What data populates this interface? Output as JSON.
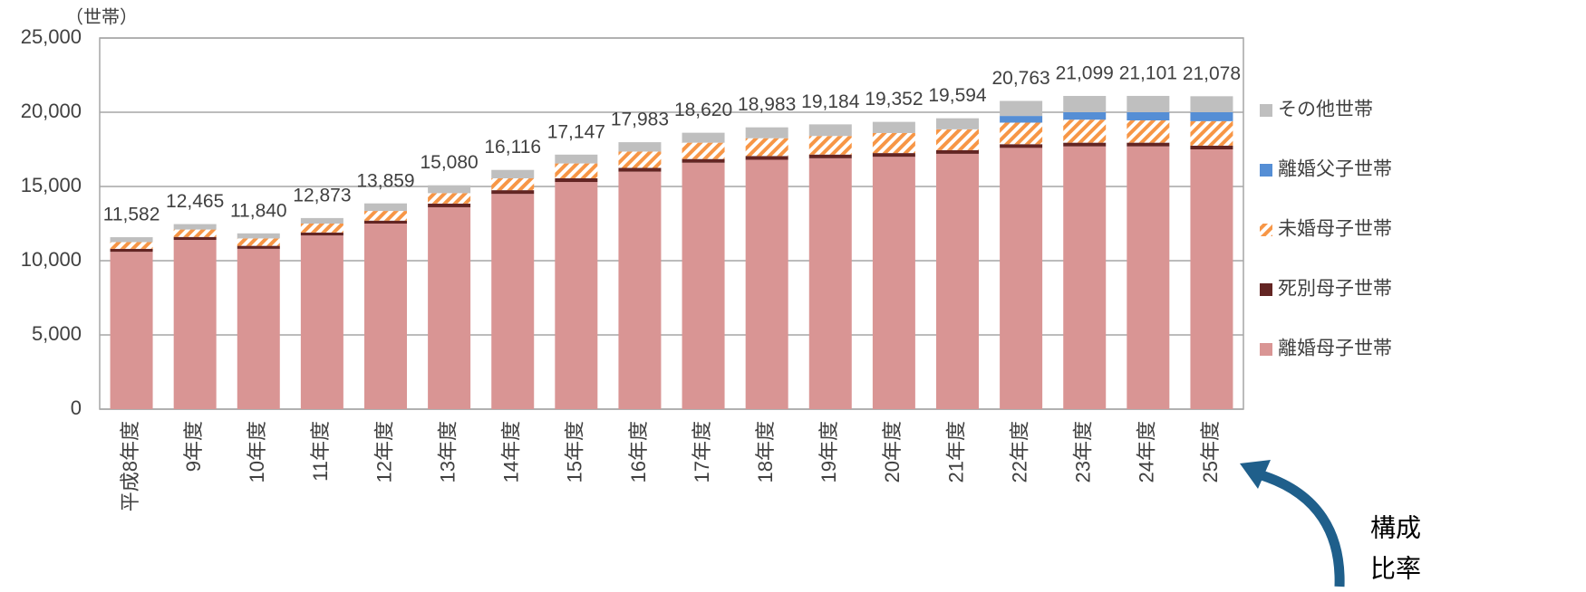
{
  "chart_data": {
    "type": "stacked_bar",
    "unit_label": "（世帯）",
    "categories": [
      "平成8年度",
      "9年度",
      "10年度",
      "11年度",
      "12年度",
      "13年度",
      "14年度",
      "15年度",
      "16年度",
      "17年度",
      "18年度",
      "19年度",
      "20年度",
      "21年度",
      "22年度",
      "23年度",
      "24年度",
      "25年度"
    ],
    "series": [
      {
        "name": "離婚母子世帯",
        "color": "#d99594",
        "values": [
          10600,
          11400,
          10800,
          11700,
          12500,
          13600,
          14500,
          15300,
          16000,
          16600,
          16800,
          16900,
          17000,
          17200,
          17600,
          17700,
          17700,
          17500
        ]
      },
      {
        "name": "死別母子世帯",
        "color": "#632523",
        "values": [
          200,
          200,
          200,
          200,
          200,
          250,
          250,
          250,
          250,
          250,
          250,
          250,
          250,
          250,
          250,
          250,
          250,
          250
        ]
      },
      {
        "name": "未婚母子世帯",
        "color": "#f79646",
        "hatch": true,
        "values": [
          450,
          500,
          500,
          600,
          650,
          700,
          800,
          1000,
          1100,
          1100,
          1200,
          1250,
          1350,
          1400,
          1450,
          1550,
          1500,
          1650
        ]
      },
      {
        "name": "離婚父子世帯",
        "color": "#558ed5",
        "values": [
          null,
          null,
          null,
          null,
          null,
          null,
          null,
          null,
          null,
          null,
          null,
          null,
          null,
          null,
          450,
          500,
          550,
          600
        ]
      },
      {
        "name": "その他世帯",
        "color": "#bfbfbf",
        "values": [
          332,
          365,
          340,
          373,
          509,
          530,
          566,
          597,
          633,
          670,
          733,
          784,
          752,
          744,
          1013,
          1099,
          1101,
          1078
        ]
      }
    ],
    "totals": {
      "values": [
        11582,
        12465,
        11840,
        12873,
        13859,
        15080,
        16116,
        17147,
        17983,
        18620,
        18983,
        19184,
        19352,
        19594,
        20763,
        21099,
        21101,
        21078
      ],
      "value_labels": [
        "11,582",
        "12,465",
        "11,840",
        "12,873",
        "13,859",
        "15,080",
        "16,116",
        "17,147",
        "17,983",
        "18,620",
        "18,983",
        "19,184",
        "19,352",
        "19,594",
        "20,763",
        "21,099",
        "21,101",
        "21,078"
      ]
    },
    "ylim": [
      0,
      25000
    ],
    "yticks": [
      0,
      {
        "value": 5000,
        "label": "5,000"
      },
      {
        "value": 10000,
        "label": "10,000"
      },
      {
        "value": 15000,
        "label": "15,000"
      },
      {
        "value": 20000,
        "label": "20,000"
      },
      {
        "value": 25000,
        "label": "25,000"
      }
    ],
    "grid": true,
    "legend": "right",
    "annotation": [
      "構成",
      "比率"
    ]
  }
}
